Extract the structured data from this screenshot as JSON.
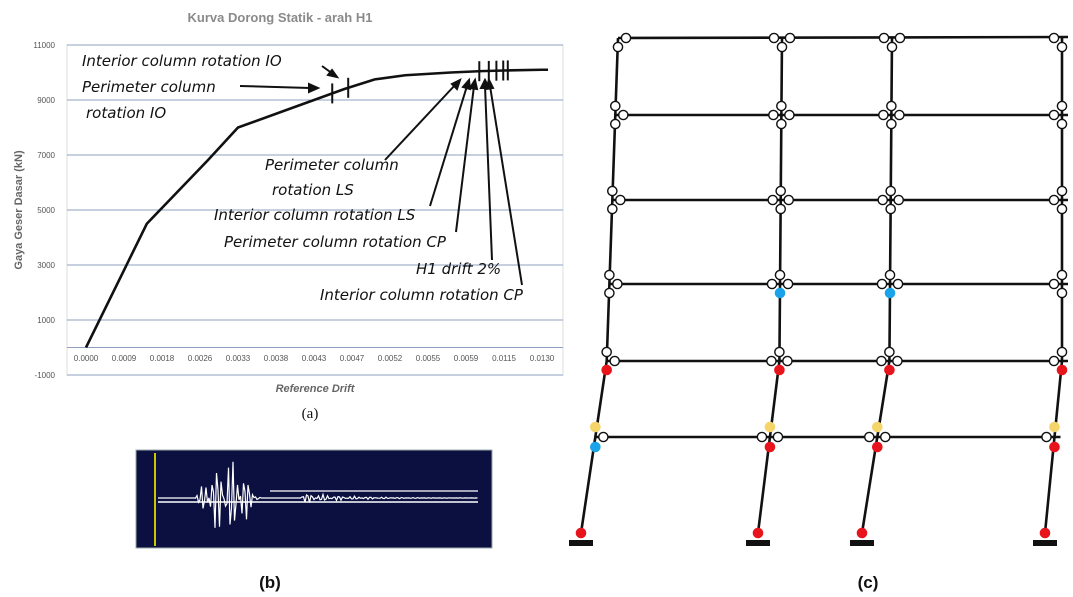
{
  "chart_data": {
    "type": "line",
    "title": "Kurva Dorong Statik - arah H1",
    "xlabel": "Reference Drift",
    "ylabel": "Gaya Geser Dasar (kN)",
    "ylim": [
      -1000,
      11000
    ],
    "yticks": [
      -1000,
      1000,
      3000,
      5000,
      7000,
      9000,
      11000
    ],
    "ytick_labels": [
      "-1000",
      "1000",
      "3000",
      "5000",
      "7000",
      "9000",
      "11000"
    ],
    "categories": [
      "0.0000",
      "0.0009",
      "0.0018",
      "0.0026",
      "0.0033",
      "0.0038",
      "0.0043",
      "0.0047",
      "0.0052",
      "0.0055",
      "0.0059",
      "0.0115",
      "0.0130"
    ],
    "x_positions": [
      0,
      1.6,
      3.2,
      4.0,
      5.6,
      6.8,
      7.6,
      8.4,
      9.6,
      10.4,
      11.2,
      12.0,
      12.0
    ],
    "values": [
      0,
      4500,
      6800,
      8000,
      8800,
      9400,
      9750,
      9900,
      10000,
      10050,
      10080,
      10100,
      10100
    ],
    "grid": true,
    "markers": [
      {
        "x": 6.48,
        "label": "Perimeter column rotation IO"
      },
      {
        "x": 6.9,
        "label": "Interior column rotation IO"
      },
      {
        "x": 10.35,
        "label": "Perimeter column rotation LS"
      },
      {
        "x": 10.6,
        "label": "Interior column rotation LS"
      },
      {
        "x": 10.8,
        "label": "Perimeter column rotation CP"
      },
      {
        "x": 10.98,
        "label": "H1 drift 2%"
      },
      {
        "x": 11.1,
        "label": "Interior column rotation CP"
      }
    ],
    "annotations": {
      "int_io": "Interior column rotation IO",
      "per_io_1": "Perimeter column",
      "per_io_2": "rotation IO",
      "per_ls_1": "Perimeter column",
      "per_ls_2": "rotation LS",
      "int_ls": "Interior column rotation LS",
      "per_cp": "Perimeter column rotation CP",
      "drift": "H1 drift 2%",
      "int_cp": "Interior column rotation CP"
    }
  },
  "labels": {
    "a": "(a)",
    "b": "(b)",
    "c": "(c)"
  },
  "colors": {
    "hinge_cp": "#e8141c",
    "hinge_ls": "#f5d46a",
    "hinge_io": "#1aa3e8",
    "waveform_bg": "#0c1040",
    "waveform_line": "#ffffff",
    "waveform_marker": "#c8c800"
  }
}
